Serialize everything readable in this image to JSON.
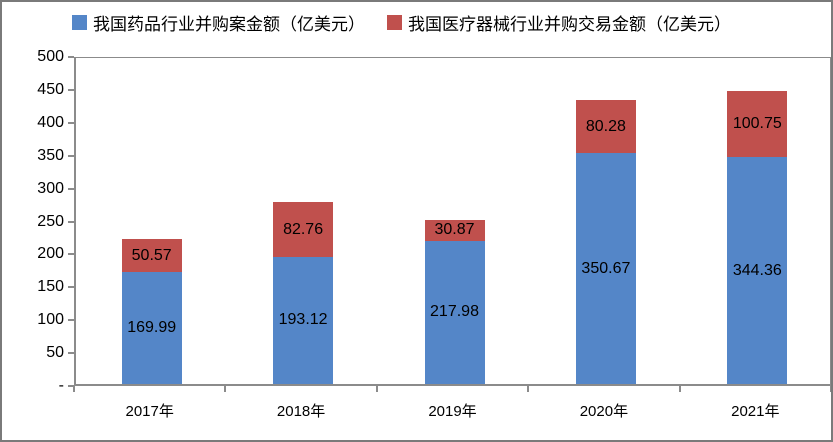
{
  "chart_data": {
    "type": "bar",
    "stacked": true,
    "title": "",
    "xlabel": "",
    "ylabel": "",
    "categories": [
      "2017年",
      "2018年",
      "2019年",
      "2020年",
      "2021年"
    ],
    "series": [
      {
        "name": "我国药品行业并购案金额（亿美元）",
        "color": "#5486C8",
        "values": [
          169.99,
          193.12,
          217.98,
          350.67,
          344.36
        ]
      },
      {
        "name": "我国医疗器械行业并购交易金额（亿美元）",
        "color": "#C0504D",
        "values": [
          50.57,
          82.76,
          30.87,
          80.28,
          100.75
        ]
      }
    ],
    "data_labels": [
      [
        "169.99",
        "193.12",
        "217.98",
        "350.67",
        "344.36"
      ],
      [
        "50.57",
        "82.76",
        "30.87",
        "80.28",
        "100.75"
      ]
    ],
    "ylim": [
      0,
      500
    ],
    "ytick_step": 50,
    "ytick_labels": [
      "-",
      "50",
      "100",
      "150",
      "200",
      "250",
      "300",
      "350",
      "400",
      "450",
      "500"
    ],
    "grid": false,
    "legend_position": "top",
    "frame_border_color": "#7a7a7a",
    "axis_color": "#8b8b8b",
    "label_color": "#000000"
  }
}
